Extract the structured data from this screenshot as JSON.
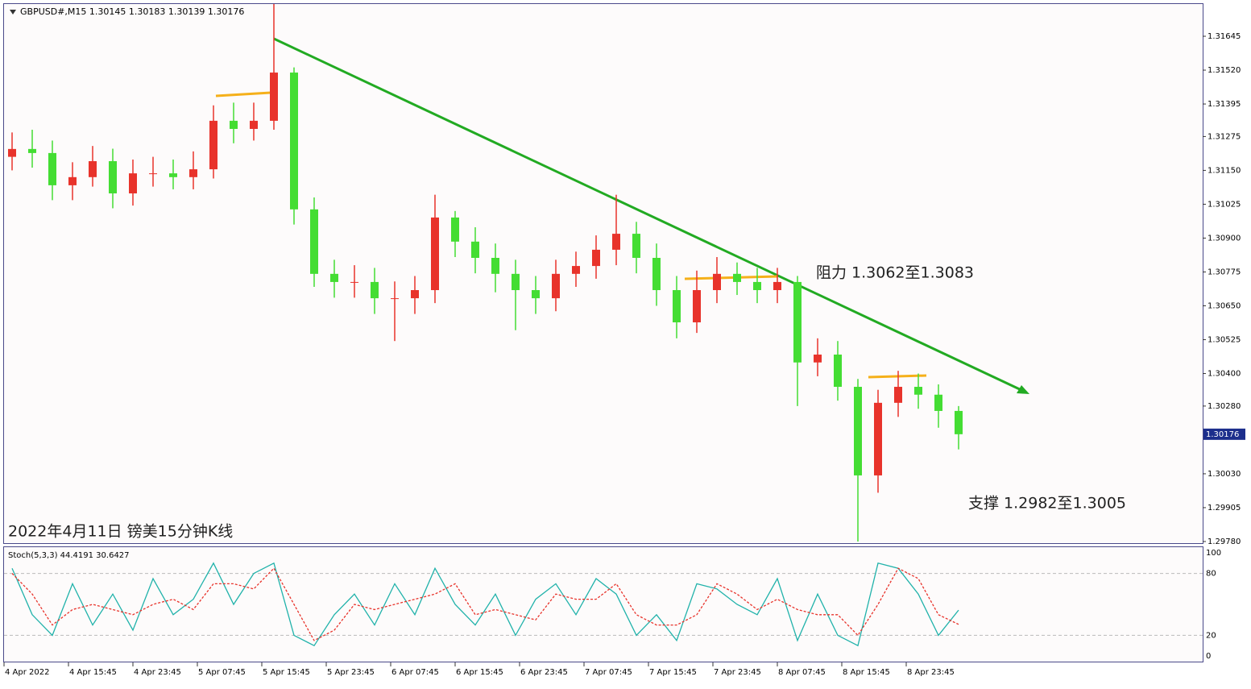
{
  "chart_data": {
    "type": "candlestick",
    "header": "GBPUSD#,M15  1.30145 1.30183 1.30139 1.30176",
    "title": "2022年4月11日 镑美15分钟K线",
    "annotations": [
      "阻力 1.3062至1.3083",
      "支撑 1.2982至1.3005"
    ],
    "up_color": "#e8332b",
    "down_color": "#44dd33",
    "open": [
      1.312,
      1.31229,
      1.31214,
      1.31095,
      1.31125,
      1.31184,
      1.31065,
      1.31139,
      1.31139,
      1.31125,
      1.31154,
      1.31333,
      1.31303,
      1.31333,
      1.31511,
      1.31006,
      1.30768,
      1.30738,
      1.30738,
      1.30678,
      1.30678,
      1.30708,
      1.30976,
      1.30887,
      1.30827,
      1.30768,
      1.30708,
      1.30678,
      1.30768,
      1.30797,
      1.30857,
      1.30916,
      1.30827,
      1.30708,
      1.30589,
      1.30708,
      1.30768,
      1.30738,
      1.30708,
      1.30738,
      1.30441,
      1.3047,
      1.30351,
      1.30024,
      1.30292,
      1.30351,
      1.30322,
      1.30262
    ],
    "high": [
      1.3129,
      1.313,
      1.3126,
      1.3118,
      1.3124,
      1.3123,
      1.3119,
      1.312,
      1.3119,
      1.3122,
      1.3139,
      1.314,
      1.314,
      1.31764,
      1.3153,
      1.3105,
      1.3082,
      1.308,
      1.3079,
      1.3074,
      1.3076,
      1.3106,
      1.31,
      1.3094,
      1.3088,
      1.3082,
      1.3076,
      1.3082,
      1.3085,
      1.3091,
      1.3106,
      1.3096,
      1.3088,
      1.3076,
      1.3078,
      1.3083,
      1.3081,
      1.3079,
      1.3079,
      1.3076,
      1.3053,
      1.3052,
      1.3038,
      1.3034,
      1.3041,
      1.304,
      1.3036,
      1.3028
    ],
    "low": [
      1.3115,
      1.3116,
      1.3104,
      1.3104,
      1.3109,
      1.3101,
      1.3102,
      1.3109,
      1.3108,
      1.3108,
      1.3112,
      1.3125,
      1.3126,
      1.313,
      1.3095,
      1.3072,
      1.3068,
      1.3068,
      1.3062,
      1.3052,
      1.3062,
      1.3066,
      1.3083,
      1.3077,
      1.307,
      1.3056,
      1.3062,
      1.3063,
      1.3072,
      1.3075,
      1.308,
      1.3077,
      1.3065,
      1.3053,
      1.3055,
      1.3066,
      1.3069,
      1.3066,
      1.3066,
      1.3028,
      1.3039,
      1.303,
      1.2978,
      1.2996,
      1.3024,
      1.3027,
      1.302,
      1.3012
    ],
    "close": [
      1.31229,
      1.31214,
      1.31095,
      1.31125,
      1.31184,
      1.31065,
      1.31139,
      1.31139,
      1.31125,
      1.31154,
      1.31333,
      1.31303,
      1.31333,
      1.31511,
      1.31006,
      1.30768,
      1.30738,
      1.30738,
      1.30678,
      1.30678,
      1.30708,
      1.30976,
      1.30887,
      1.30827,
      1.30768,
      1.30708,
      1.30678,
      1.30768,
      1.30797,
      1.30857,
      1.30916,
      1.30827,
      1.30708,
      1.30589,
      1.30708,
      1.30768,
      1.30738,
      1.30708,
      1.30738,
      1.30441,
      1.3047,
      1.30351,
      1.30024,
      1.30292,
      1.30351,
      1.30322,
      1.30262,
      1.30176
    ],
    "last_price": 1.30176,
    "ylim": [
      1.29771,
      1.31764
    ],
    "yticks": [
      1.31645,
      {
        "value": 1.3152,
        "label": "1.31520"
      },
      1.31395,
      1.31275,
      {
        "value": 1.3115,
        "label": "1.31150"
      },
      1.31025,
      {
        "value": 1.309,
        "label": "1.30900"
      },
      1.30775,
      {
        "value": 1.3065,
        "label": "1.30650"
      },
      1.30525,
      {
        "value": 1.304,
        "label": "1.30400"
      },
      {
        "value": 1.3028,
        "label": "1.30280"
      },
      {
        "value": 1.3003,
        "label": "1.30030"
      },
      1.29905,
      {
        "value": 1.2978,
        "label": "1.29780"
      }
    ],
    "x_labels": [
      "4 Apr 2022",
      "4 Apr 15:45",
      "4 Apr 23:45",
      "5 Apr 07:45",
      "5 Apr 15:45",
      "5 Apr 23:45",
      "6 Apr 07:45",
      "6 Apr 15:45",
      "6 Apr 23:45",
      "7 Apr 07:45",
      "7 Apr 15:45",
      "7 Apr 23:45",
      "8 Apr 07:45",
      "8 Apr 15:45",
      "8 Apr 23:45"
    ],
    "oscillator": {
      "title": "Stoch(5,3,3) 44.4191 30.6427",
      "ylim": [
        0,
        100
      ],
      "yticks": [
        100,
        80,
        20,
        0
      ],
      "series": [
        {
          "color": "#20b2aa",
          "values": [
            85,
            40,
            20,
            70,
            30,
            60,
            25,
            75,
            40,
            55,
            90,
            50,
            80,
            90,
            20,
            10,
            40,
            60,
            30,
            70,
            40,
            85,
            50,
            30,
            60,
            20,
            55,
            70,
            40,
            75,
            60,
            20,
            40,
            15,
            70,
            65,
            50,
            40,
            75,
            15,
            60,
            20,
            10,
            90,
            85,
            60,
            20,
            44.4191
          ]
        },
        {
          "color": "#e8332b",
          "values": [
            80,
            60,
            30,
            45,
            50,
            45,
            40,
            50,
            55,
            45,
            70,
            70,
            65,
            85,
            50,
            15,
            25,
            50,
            45,
            50,
            55,
            60,
            70,
            40,
            45,
            40,
            35,
            60,
            55,
            55,
            70,
            40,
            30,
            30,
            40,
            70,
            60,
            45,
            55,
            45,
            40,
            40,
            20,
            50,
            85,
            75,
            40,
            30.6427
          ]
        }
      ]
    }
  }
}
